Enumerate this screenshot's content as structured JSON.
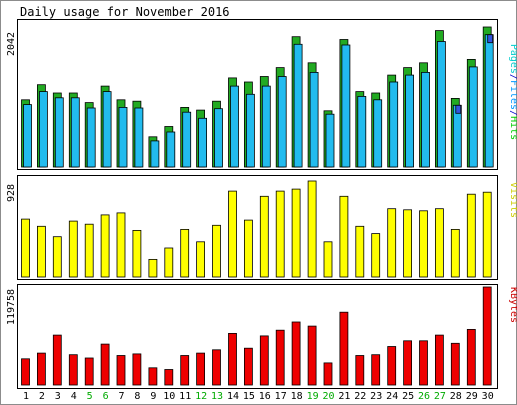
{
  "chart_data": [
    {
      "type": "bar",
      "title": "Daily usage for November 2016",
      "panel": "pages-files-hits",
      "ylabel": "Pages/Files/Hits",
      "ylabel_parts": [
        "Pages",
        "/",
        "Files",
        "/",
        "Hits"
      ],
      "ymax_label": "2042",
      "ylim": [
        0,
        2042
      ],
      "categories": [
        "1",
        "2",
        "3",
        "4",
        "5",
        "6",
        "7",
        "8",
        "9",
        "10",
        "11",
        "12",
        "13",
        "14",
        "15",
        "16",
        "17",
        "18",
        "19",
        "20",
        "21",
        "22",
        "23",
        "24",
        "25",
        "26",
        "27",
        "28",
        "29",
        "30"
      ],
      "weekend_days": [
        "5",
        "6",
        "12",
        "13",
        "19",
        "20",
        "26",
        "27"
      ],
      "series": [
        {
          "name": "Hits",
          "color": "#00cccc",
          "values": [
            980,
            1200,
            1080,
            1080,
            940,
            1180,
            980,
            960,
            440,
            590,
            870,
            830,
            960,
            1300,
            1240,
            1320,
            1450,
            1900,
            1520,
            820,
            1860,
            1100,
            1080,
            1340,
            1450,
            1520,
            1990,
            1000,
            1570,
            2042
          ]
        },
        {
          "name": "Files",
          "color": "#0099ff",
          "values": [
            910,
            1100,
            1010,
            1010,
            860,
            1100,
            870,
            860,
            380,
            510,
            800,
            710,
            850,
            1180,
            1060,
            1180,
            1320,
            1790,
            1380,
            770,
            1780,
            1030,
            980,
            1240,
            1340,
            1380,
            1830,
            900,
            1460,
            1930
          ]
        },
        {
          "name": "Pages",
          "color": "#00cc00",
          "values": [
            100,
            120,
            110,
            90,
            95,
            100,
            90,
            80,
            60,
            70,
            80,
            60,
            80,
            120,
            90,
            110,
            100,
            140,
            120,
            70,
            130,
            100,
            90,
            110,
            100,
            110,
            120,
            80,
            100,
            110
          ]
        }
      ]
    },
    {
      "type": "bar",
      "panel": "visits",
      "ylabel": "Visits",
      "ymax_label": "928",
      "ylim": [
        0,
        928
      ],
      "categories": [
        "1",
        "2",
        "3",
        "4",
        "5",
        "6",
        "7",
        "8",
        "9",
        "10",
        "11",
        "12",
        "13",
        "14",
        "15",
        "16",
        "17",
        "18",
        "19",
        "20",
        "21",
        "22",
        "23",
        "24",
        "25",
        "26",
        "27",
        "28",
        "29",
        "30"
      ],
      "series": [
        {
          "name": "Visits",
          "color": "#ffff00",
          "values": [
            560,
            490,
            390,
            540,
            510,
            600,
            620,
            450,
            170,
            280,
            460,
            340,
            500,
            830,
            550,
            780,
            830,
            850,
            928,
            340,
            780,
            490,
            420,
            660,
            650,
            640,
            660,
            460,
            800,
            820
          ]
        }
      ]
    },
    {
      "type": "bar",
      "panel": "kbytes",
      "ylabel": "KBytes",
      "ymax_label": "119758",
      "ylim": [
        0,
        119758
      ],
      "categories": [
        "1",
        "2",
        "3",
        "4",
        "5",
        "6",
        "7",
        "8",
        "9",
        "10",
        "11",
        "12",
        "13",
        "14",
        "15",
        "16",
        "17",
        "18",
        "19",
        "20",
        "21",
        "22",
        "23",
        "24",
        "25",
        "26",
        "27",
        "28",
        "29",
        "30"
      ],
      "series": [
        {
          "name": "KBytes",
          "color": "#ff0000",
          "values": [
            32000,
            39000,
            61000,
            37000,
            33000,
            50000,
            36000,
            38000,
            21000,
            19000,
            36000,
            39000,
            43000,
            63000,
            45000,
            60000,
            67000,
            77000,
            72000,
            27000,
            89000,
            36000,
            37000,
            47000,
            54000,
            54000,
            61000,
            51000,
            68000,
            119758
          ]
        }
      ]
    }
  ]
}
